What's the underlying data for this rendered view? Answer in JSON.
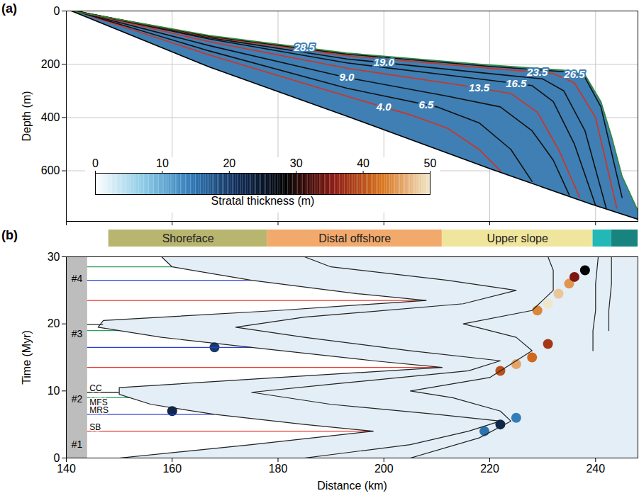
{
  "chart_data": [
    {
      "panel": "(a)",
      "type": "area",
      "ylabel": "Depth (m)",
      "xlim": [
        140,
        248
      ],
      "ylim": [
        0,
        790
      ],
      "xticks": [
        140,
        160,
        180,
        200,
        220,
        240
      ],
      "yticks": [
        0,
        200,
        400,
        600
      ],
      "tick_labels": "y",
      "grid": true,
      "surfaces": [
        {
          "label": "28.5",
          "color": "#2e8b3a",
          "label_x": 185,
          "points": [
            [
              141,
              0
            ],
            [
              167,
              92
            ],
            [
              193,
              158
            ],
            [
              220,
              203
            ],
            [
              234,
              222
            ],
            [
              238,
              240
            ],
            [
              241,
              340
            ],
            [
              243,
              470
            ],
            [
              245,
              620
            ],
            [
              248,
              750
            ]
          ]
        },
        {
          "label": "26.5",
          "color": "#111111",
          "label_x": 236,
          "points": [
            [
              141.5,
              0
            ],
            [
              167,
              95
            ],
            [
              193,
              162
            ],
            [
              220,
              208
            ],
            [
              234,
              228
            ],
            [
              238,
              250
            ],
            [
              241,
              360
            ],
            [
              245,
              700
            ]
          ]
        },
        {
          "label": "23.5",
          "color": "#d7301f",
          "label_x": 229,
          "points": [
            [
              141.5,
              0
            ],
            [
              167,
              97
            ],
            [
              193,
              168
            ],
            [
              220,
              215
            ],
            [
              232,
              235
            ],
            [
              236,
              270
            ],
            [
              240,
              400
            ],
            [
              244,
              740
            ]
          ]
        },
        {
          "label": "19.0",
          "color": "#111111",
          "label_x": 200,
          "points": [
            [
              142,
              1
            ],
            [
              167,
              100
            ],
            [
              193,
              180
            ],
            [
              220,
              235
            ],
            [
              230,
              255
            ],
            [
              234,
              300
            ],
            [
              238,
              450
            ],
            [
              242,
              740
            ]
          ]
        },
        {
          "label": "16.5",
          "color": "#111111",
          "label_x": 225,
          "points": [
            [
              142,
              1
            ],
            [
              167,
              105
            ],
            [
              193,
              195
            ],
            [
              220,
              260
            ],
            [
              228,
              280
            ],
            [
              232,
              340
            ],
            [
              236,
              500
            ],
            [
              240,
              730
            ]
          ]
        },
        {
          "label": "13.5",
          "color": "#d7301f",
          "label_x": 218,
          "points": [
            [
              142,
              1
            ],
            [
              167,
              115
            ],
            [
              193,
              215
            ],
            [
              215,
              280
            ],
            [
              224,
              310
            ],
            [
              229,
              380
            ],
            [
              233,
              520
            ],
            [
              237,
              700
            ]
          ]
        },
        {
          "label": "9.0",
          "color": "#111111",
          "label_x": 193,
          "points": [
            [
              142,
              2
            ],
            [
              167,
              130
            ],
            [
              193,
              250
            ],
            [
              212,
              320
            ],
            [
              222,
              360
            ],
            [
              228,
              450
            ],
            [
              232,
              560
            ],
            [
              235,
              690
            ]
          ]
        },
        {
          "label": "6.5",
          "color": "#111111",
          "label_x": 208,
          "points": [
            [
              142,
              2
            ],
            [
              167,
              150
            ],
            [
              193,
              290
            ],
            [
              210,
              360
            ],
            [
              218,
              420
            ],
            [
              224,
              520
            ],
            [
              228,
              640
            ]
          ]
        },
        {
          "label": "4.0",
          "color": "#d7301f",
          "label_x": 200,
          "points": [
            [
              142,
              2
            ],
            [
              167,
              165
            ],
            [
              193,
              320
            ],
            [
              205,
              390
            ],
            [
              212,
              440
            ],
            [
              218,
              520
            ],
            [
              222,
              600
            ]
          ]
        }
      ],
      "base": [
        [
          141,
          0
        ],
        [
          167,
          210
        ],
        [
          193,
          395
        ],
        [
          220,
          592
        ],
        [
          239,
          724
        ],
        [
          248,
          782
        ]
      ],
      "colorbar": {
        "label": "Stratal thickness (m)",
        "range": [
          0,
          50
        ],
        "ticks": [
          0,
          10,
          20,
          30,
          40,
          50
        ],
        "colors": [
          "#ffffff",
          "#8ccbe6",
          "#2f7ab8",
          "#0f2a55",
          "#000000",
          "#8b1a12",
          "#d9741e",
          "#f0e6c8"
        ]
      }
    },
    {
      "panel": "(b)",
      "type": "line",
      "xlabel": "Distance (km)",
      "ylabel": "Time (Myr)",
      "xlim": [
        140,
        248
      ],
      "ylim": [
        0,
        30
      ],
      "xticks": [
        140,
        160,
        180,
        200,
        220,
        240
      ],
      "yticks": [
        0,
        10,
        20,
        30
      ],
      "grid": false,
      "zones": [
        {
          "name": "Shoreface",
          "from": 148,
          "to": 178,
          "color": "#b8b56f"
        },
        {
          "name": "Distal offshore",
          "from": 178,
          "to": 211,
          "color": "#f2a96c"
        },
        {
          "name": "Upper slope",
          "from": 211,
          "to": 239.5,
          "color": "#efe59c"
        },
        {
          "from": 239.5,
          "to": 243,
          "color": "#22b8b8"
        },
        {
          "from": 243,
          "to": 248,
          "color": "#17847f"
        }
      ],
      "sequences": {
        "band": [
          140,
          144
        ],
        "color": "#bdbdbd",
        "items": [
          {
            "name": "#1",
            "from": 0,
            "to": 4
          },
          {
            "name": "#2",
            "from": 4,
            "to": 13.5
          },
          {
            "name": "#3",
            "from": 13.5,
            "to": 23.5
          },
          {
            "name": "#4",
            "from": 23.5,
            "to": 30
          }
        ]
      },
      "surfaces": [
        {
          "name": "SB",
          "color": "#e8392d",
          "lines": [
            {
              "time": 4.0,
              "to": 198
            },
            {
              "time": 13.5,
              "to": 211
            },
            {
              "time": 23.5,
              "to": 208
            }
          ]
        },
        {
          "name": "MRS",
          "color": "#2b3fd6",
          "lines": [
            {
              "time": 6.5,
              "to": 168
            },
            {
              "time": 16.5,
              "to": 175
            },
            {
              "time": 26.5,
              "to": 175
            }
          ]
        },
        {
          "name": "MFS",
          "color": "#2ca05a",
          "lines": [
            {
              "time": 9.0,
              "to": 152
            },
            {
              "time": 19.0,
              "to": 150
            },
            {
              "time": 28.5,
              "to": 160
            }
          ]
        },
        {
          "name": "CC",
          "color": "#333333",
          "lines": [
            {
              "time": 9.8,
              "to": 150
            },
            {
              "time": 19.9,
              "to": 147
            }
          ]
        }
      ],
      "trajectories": [
        {
          "color": "#222222",
          "t": [
            0,
            2,
            4,
            5,
            6.5,
            8,
            9.5,
            10.5,
            12,
            13.5,
            14.5,
            16.5,
            18,
            19.5,
            20.5,
            22,
            23.5,
            24.5,
            26.5,
            28.5,
            30
          ],
          "x": [
            150,
            175,
            198,
            185,
            168,
            156,
            150,
            150,
            180,
            211,
            198,
            175,
            158,
            146,
            147,
            180,
            208,
            195,
            175,
            160,
            158
          ]
        },
        {
          "color": "#222222",
          "t": [
            0,
            2,
            4,
            5.5,
            6.5,
            8,
            9.8,
            11,
            13,
            14.5,
            16,
            18,
            19.5,
            21,
            23,
            25,
            26.5,
            28.5,
            30
          ],
          "x": [
            185,
            205,
            216,
            222,
            210,
            190,
            175,
            190,
            216,
            222,
            205,
            185,
            172,
            185,
            215,
            225,
            212,
            190,
            185
          ]
        },
        {
          "color": "#222222",
          "t": [
            0,
            3,
            5.5,
            7,
            9,
            10,
            12,
            14,
            16,
            18,
            20,
            22,
            25,
            28,
            30
          ],
          "x": [
            205,
            218,
            224,
            222,
            213,
            205,
            220,
            224,
            228,
            225,
            215,
            228,
            232,
            232,
            231
          ]
        },
        {
          "color": "#222222",
          "t": [
            16,
            19,
            22,
            26,
            30
          ],
          "x": [
            239.5,
            239.5,
            240,
            240,
            240.5
          ]
        },
        {
          "color": "#222222",
          "t": [
            19,
            22,
            26,
            30
          ],
          "x": [
            242.5,
            242.5,
            243,
            243
          ]
        }
      ],
      "cells": [
        {
          "x": 222,
          "t": 5,
          "thickness": 22
        },
        {
          "x": 219,
          "t": 4,
          "thickness": 15
        },
        {
          "x": 225,
          "t": 6,
          "thickness": 14
        },
        {
          "x": 160,
          "t": 7,
          "thickness": 22
        },
        {
          "x": 168,
          "t": 16.5,
          "thickness": 20
        },
        {
          "x": 222,
          "t": 13,
          "thickness": 40
        },
        {
          "x": 225,
          "t": 14,
          "thickness": 46
        },
        {
          "x": 228,
          "t": 15,
          "thickness": 42
        },
        {
          "x": 231,
          "t": 17,
          "thickness": 38
        },
        {
          "x": 229,
          "t": 22,
          "thickness": 44
        },
        {
          "x": 231,
          "t": 23,
          "thickness": 50
        },
        {
          "x": 233,
          "t": 24.5,
          "thickness": 48
        },
        {
          "x": 235,
          "t": 26,
          "thickness": 45
        },
        {
          "x": 236,
          "t": 27,
          "thickness": 35
        },
        {
          "x": 238,
          "t": 28,
          "thickness": 28
        }
      ]
    }
  ]
}
